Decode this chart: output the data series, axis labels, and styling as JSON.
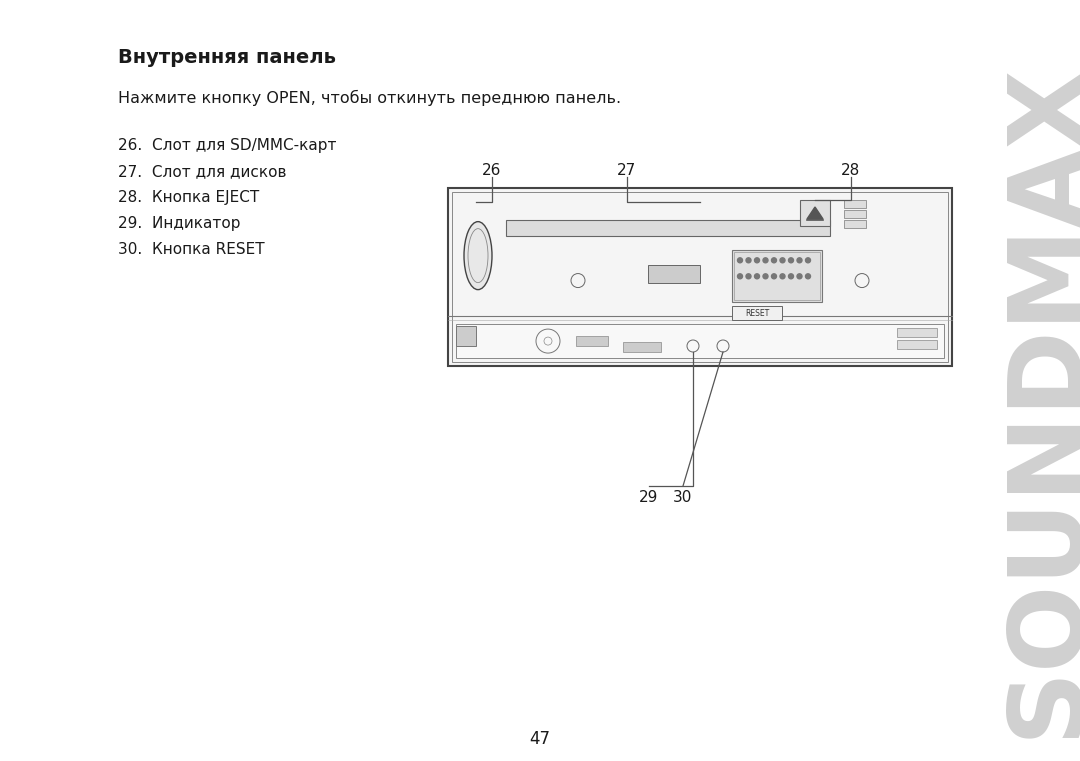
{
  "title": "Внутренняя панель",
  "subtitle": "Нажмите кнопку OPEN, чтобы откинуть переднюю панель.",
  "item26": "26.  Слот для SD/MMC-карт",
  "item27": "27.  Слот для дисков",
  "item28": "28.  Кнопка EJECT",
  "item29": "29.  Индикатор",
  "item30": "30.  Кнопка RESET",
  "page_number": "47",
  "bg_color": "#ffffff",
  "text_color": "#1a1a1a",
  "diagram_edge": "#444444",
  "soundmax_color": "#d0d0d0"
}
